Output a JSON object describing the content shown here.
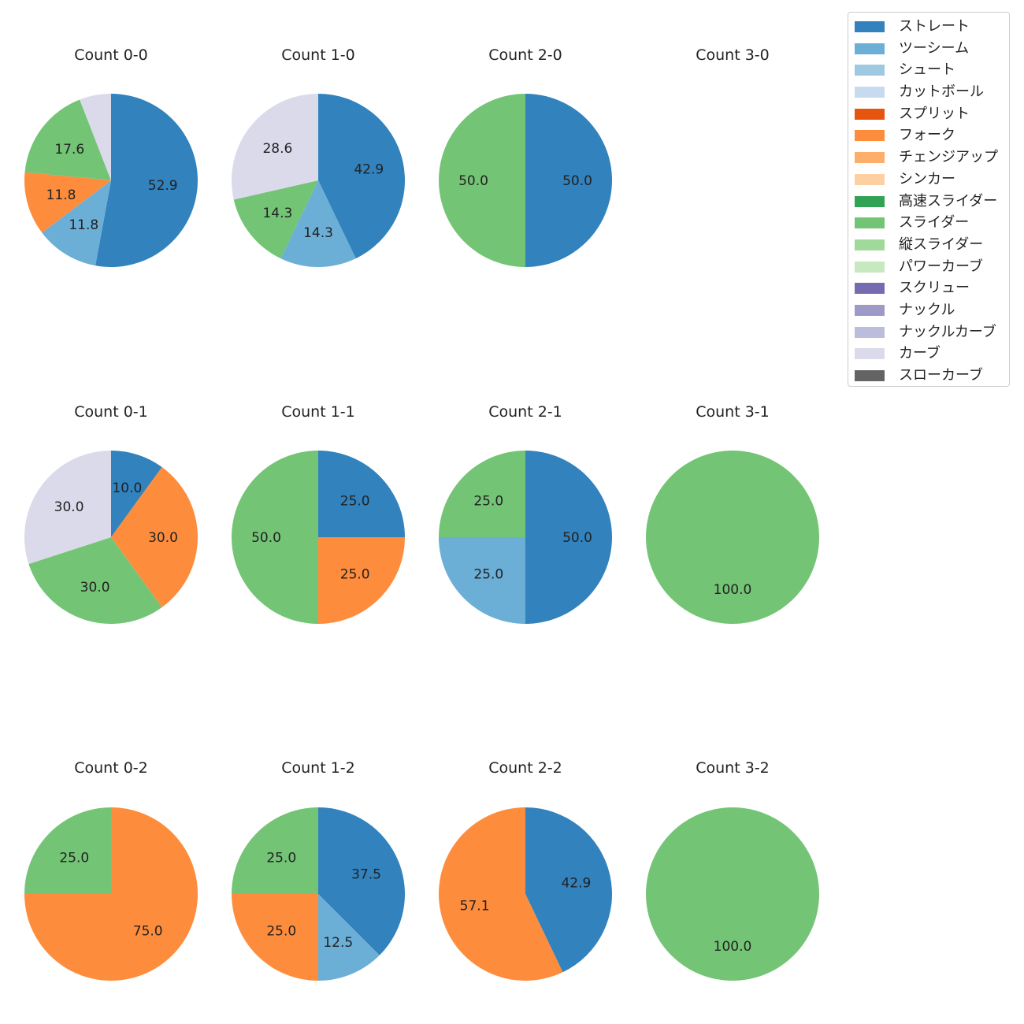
{
  "legend": {
    "items": [
      {
        "label": "ストレート",
        "color": "#3182bd"
      },
      {
        "label": "ツーシーム",
        "color": "#6baed6"
      },
      {
        "label": "シュート",
        "color": "#9ecae1"
      },
      {
        "label": "カットボール",
        "color": "#c6dbef"
      },
      {
        "label": "スプリット",
        "color": "#e6550d"
      },
      {
        "label": "フォーク",
        "color": "#fd8d3c"
      },
      {
        "label": "チェンジアップ",
        "color": "#fdae6b"
      },
      {
        "label": "シンカー",
        "color": "#fdd0a2"
      },
      {
        "label": "高速スライダー",
        "color": "#31a354"
      },
      {
        "label": "スライダー",
        "color": "#74c476"
      },
      {
        "label": "縦スライダー",
        "color": "#a1d99b"
      },
      {
        "label": "パワーカーブ",
        "color": "#c7e9c0"
      },
      {
        "label": "スクリュー",
        "color": "#756bb1"
      },
      {
        "label": "ナックル",
        "color": "#9e9ac8"
      },
      {
        "label": "ナックルカーブ",
        "color": "#bcbddc"
      },
      {
        "label": "カーブ",
        "color": "#dadaeb"
      },
      {
        "label": "スローカーブ",
        "color": "#636363"
      }
    ]
  },
  "chart_data": [
    {
      "type": "pie",
      "title": "Count 0-0",
      "categories": [
        "ストレート",
        "ツーシーム",
        "フォーク",
        "スライダー",
        "カーブ"
      ],
      "values": [
        52.9,
        11.8,
        11.8,
        17.6,
        5.9
      ],
      "labels": [
        "52.9",
        "11.8",
        "11.8",
        "17.6",
        ""
      ]
    },
    {
      "type": "pie",
      "title": "Count 1-0",
      "categories": [
        "ストレート",
        "ツーシーム",
        "スライダー",
        "カーブ"
      ],
      "values": [
        42.9,
        14.3,
        14.3,
        28.6
      ],
      "labels": [
        "42.9",
        "14.3",
        "14.3",
        "28.6"
      ]
    },
    {
      "type": "pie",
      "title": "Count 2-0",
      "categories": [
        "ストレート",
        "スライダー"
      ],
      "values": [
        50.0,
        50.0
      ],
      "labels": [
        "50.0",
        "50.0"
      ]
    },
    {
      "type": "pie",
      "title": "Count 3-0",
      "categories": [],
      "values": [],
      "labels": []
    },
    {
      "type": "pie",
      "title": "Count 0-1",
      "categories": [
        "ストレート",
        "フォーク",
        "スライダー",
        "カーブ"
      ],
      "values": [
        10.0,
        30.0,
        30.0,
        30.0
      ],
      "labels": [
        "10.0",
        "30.0",
        "30.0",
        "30.0"
      ]
    },
    {
      "type": "pie",
      "title": "Count 1-1",
      "categories": [
        "ストレート",
        "フォーク",
        "スライダー"
      ],
      "values": [
        25.0,
        25.0,
        50.0
      ],
      "labels": [
        "25.0",
        "25.0",
        "50.0"
      ]
    },
    {
      "type": "pie",
      "title": "Count 2-1",
      "categories": [
        "ストレート",
        "ツーシーム",
        "スライダー"
      ],
      "values": [
        50.0,
        25.0,
        25.0
      ],
      "labels": [
        "50.0",
        "25.0",
        "25.0"
      ]
    },
    {
      "type": "pie",
      "title": "Count 3-1",
      "categories": [
        "スライダー"
      ],
      "values": [
        100.0
      ],
      "labels": [
        "100.0"
      ]
    },
    {
      "type": "pie",
      "title": "Count 0-2",
      "categories": [
        "フォーク",
        "スライダー"
      ],
      "values": [
        75.0,
        25.0
      ],
      "labels": [
        "75.0",
        "25.0"
      ]
    },
    {
      "type": "pie",
      "title": "Count 1-2",
      "categories": [
        "ストレート",
        "ツーシーム",
        "フォーク",
        "スライダー"
      ],
      "values": [
        37.5,
        12.5,
        25.0,
        25.0
      ],
      "labels": [
        "37.5",
        "12.5",
        "25.0",
        "25.0"
      ]
    },
    {
      "type": "pie",
      "title": "Count 2-2",
      "categories": [
        "ストレート",
        "フォーク"
      ],
      "values": [
        42.9,
        57.1
      ],
      "labels": [
        "42.9",
        "57.1"
      ]
    },
    {
      "type": "pie",
      "title": "Count 3-2",
      "categories": [
        "スライダー"
      ],
      "values": [
        100.0
      ],
      "labels": [
        "100.0"
      ]
    }
  ]
}
